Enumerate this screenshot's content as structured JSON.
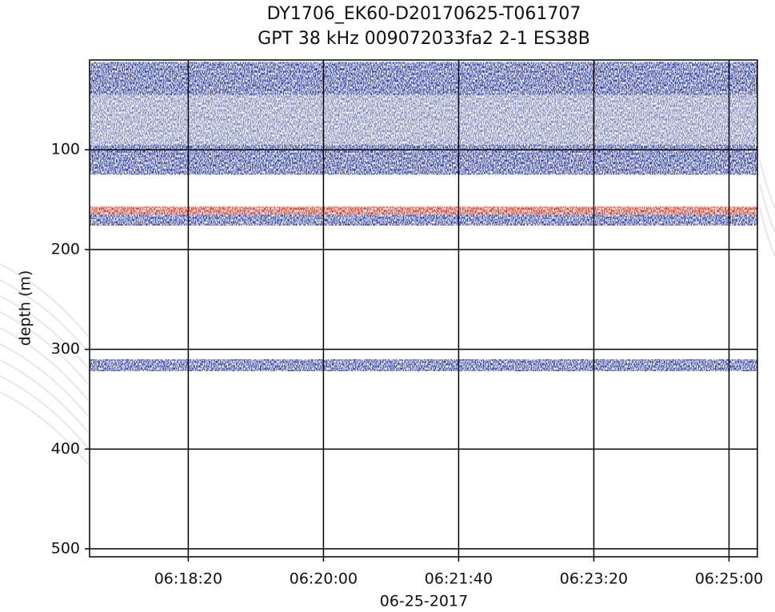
{
  "chart_data": {
    "type": "echogram",
    "title": "DY1706_EK60-D20170625-T061707",
    "subtitle": "GPT  38 kHz 009072033fa2 2-1 ES38B",
    "x_label": "06-25-2017",
    "y_label": "depth (m)",
    "xlim": [
      "06:17:07",
      "06:25:21"
    ],
    "xticks": [
      "06:18:20",
      "06:20:00",
      "06:21:40",
      "06:23:20",
      "06:25:00"
    ],
    "ylim": [
      10,
      508
    ],
    "y_inverted": true,
    "yticks": [
      100,
      200,
      300,
      400,
      500
    ],
    "grid": true,
    "layers": [
      {
        "top": 12,
        "bottom": 45,
        "color": "#2b3a9c"
      },
      {
        "top": 45,
        "bottom": 95,
        "color": "#7d86b8"
      },
      {
        "top": 95,
        "bottom": 125,
        "color": "#2b3a9c"
      },
      {
        "top": 157,
        "bottom": 165,
        "color": "#d2321e"
      },
      {
        "top": 165,
        "bottom": 176,
        "color": "#2b3a9c"
      },
      {
        "top": 310,
        "bottom": 322,
        "color": "#2b3a9c"
      }
    ]
  }
}
